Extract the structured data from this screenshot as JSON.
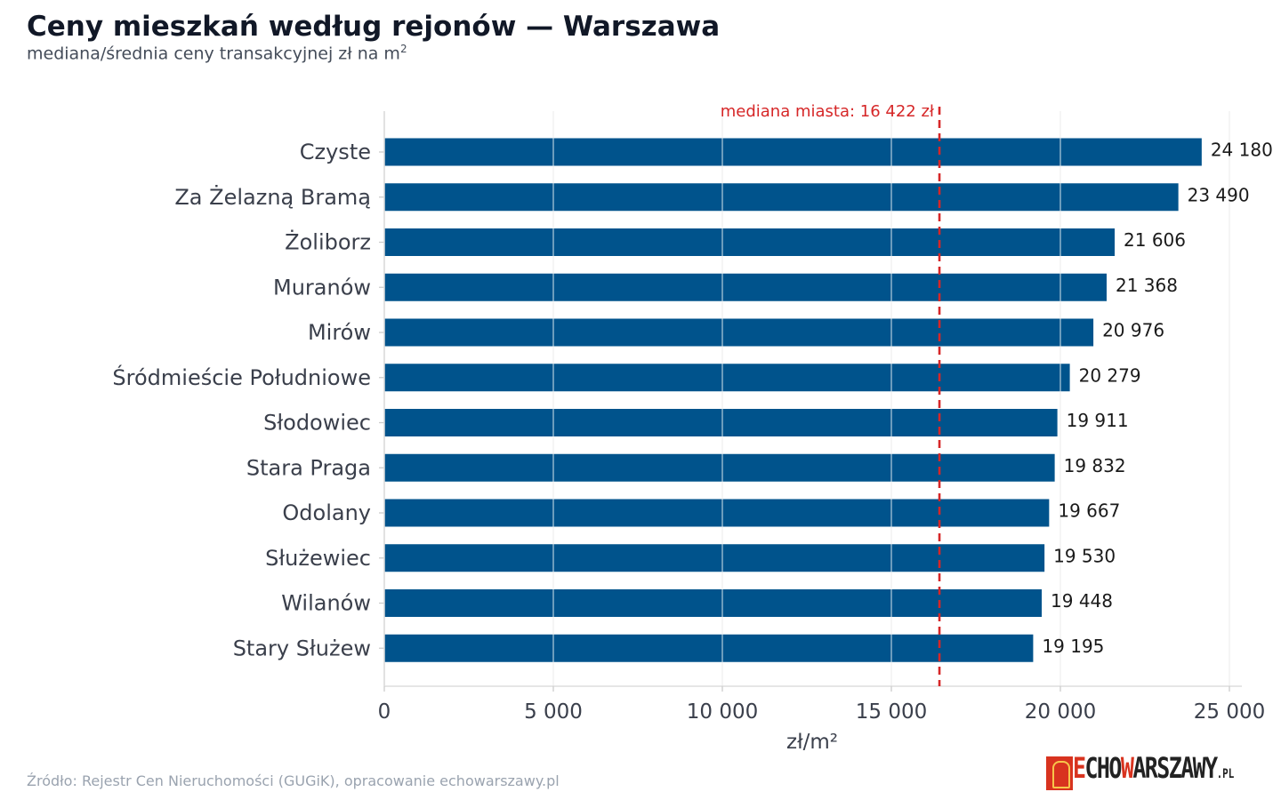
{
  "header": {
    "title": "Ceny mieszkań według rejonów — Warszawa",
    "subtitle": "mediana/średnia ceny transakcyjnej zł na m",
    "subtitle_sup": "2"
  },
  "footer": {
    "source": "Źródło: Rejestr Cen Nieruchomości (GUGiK), opracowanie echowarszawy.pl",
    "logo": {
      "echo_e": "E",
      "echo_rest": "CHO",
      "warszawy_w": "W",
      "warszawy_rest": "ARSZAWY",
      "pl": ".PL"
    }
  },
  "chart_data": {
    "type": "bar",
    "orientation": "horizontal",
    "categories": [
      "Czyste",
      "Za Żelazną Bramą",
      "Żoliborz",
      "Muranów",
      "Mirów",
      "Śródmieście Południowe",
      "Słodowiec",
      "Stara Praga",
      "Odolany",
      "Służewiec",
      "Wilanów",
      "Stary Służew"
    ],
    "values": [
      24180,
      23490,
      21606,
      21368,
      20976,
      20279,
      19911,
      19832,
      19667,
      19530,
      19448,
      19195
    ],
    "value_labels": [
      "24 180",
      "23 490",
      "21 606",
      "21 368",
      "20 976",
      "20 279",
      "19 911",
      "19 832",
      "19 667",
      "19 530",
      "19 448",
      "19 195"
    ],
    "xlabel": "zł/m²",
    "xlim": [
      0,
      25500
    ],
    "xticks": [
      0,
      5000,
      10000,
      15000,
      20000,
      25000
    ],
    "xtick_labels": [
      "0",
      "5 000",
      "10 000",
      "15 000",
      "20 000",
      "25 000"
    ],
    "grid": true,
    "reference_line": {
      "value": 16422,
      "label": "mediana miasta: 16 422 zł",
      "color": "#d62728",
      "style": "dashed"
    },
    "bar_color": "#00538c"
  }
}
